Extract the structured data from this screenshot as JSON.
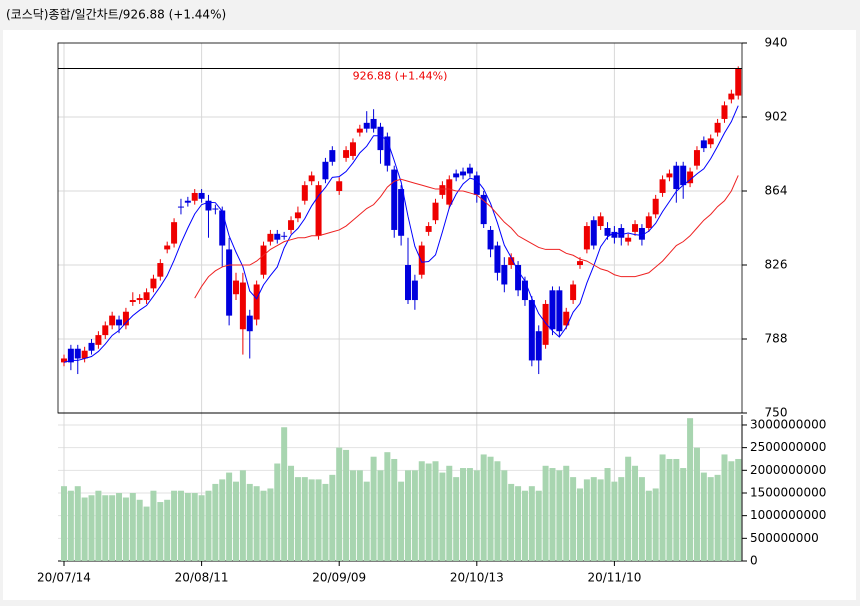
{
  "chart_data": {
    "type": "candlestick",
    "title": "(코스닥)종합/일간차트/926.88  (+1.44%)",
    "annotation": "926.88 (+1.44%)",
    "categories": [
      "20/07/14",
      null,
      null,
      null,
      null,
      null,
      null,
      null,
      null,
      null,
      null,
      null,
      null,
      null,
      null,
      null,
      null,
      null,
      null,
      null,
      "20/08/11",
      null,
      null,
      null,
      null,
      null,
      null,
      null,
      null,
      null,
      null,
      null,
      null,
      null,
      null,
      null,
      null,
      null,
      null,
      null,
      "20/09/09",
      null,
      null,
      null,
      null,
      null,
      null,
      null,
      null,
      null,
      null,
      null,
      null,
      null,
      null,
      null,
      null,
      null,
      null,
      null,
      "20/10/13",
      null,
      null,
      null,
      null,
      null,
      null,
      null,
      null,
      null,
      null,
      null,
      null,
      null,
      null,
      null,
      null,
      null,
      null,
      null,
      "20/11/10",
      null,
      null,
      null,
      null,
      null,
      null,
      null,
      null,
      null,
      null,
      null,
      null,
      null,
      null,
      null,
      null,
      null,
      null
    ],
    "open": [
      776,
      783,
      783,
      778,
      786,
      785,
      790,
      795,
      798,
      795,
      807,
      808,
      808,
      814,
      820,
      834,
      837,
      856,
      859,
      859,
      863,
      859,
      855,
      854,
      834,
      811,
      793,
      800,
      798,
      821,
      838,
      842,
      841,
      844,
      850,
      859,
      869,
      841,
      879,
      885,
      864,
      881,
      882,
      894,
      899,
      901,
      897,
      892,
      875,
      865,
      826,
      818,
      821,
      843,
      849,
      862,
      857,
      873,
      874,
      876,
      872,
      862,
      844,
      836,
      826,
      826,
      826,
      818,
      808,
      792,
      785,
      813,
      813,
      795,
      808,
      826,
      834,
      849,
      846,
      845,
      843,
      845,
      838,
      843,
      845,
      845,
      852,
      863,
      871,
      877,
      877,
      868,
      877,
      890,
      888,
      894,
      901,
      911,
      913
    ],
    "high": [
      780,
      785,
      785,
      784,
      788,
      792,
      797,
      802,
      800,
      804,
      812,
      811,
      814,
      821,
      829,
      838,
      850,
      860,
      861,
      865,
      865,
      862,
      857,
      856,
      840,
      822,
      822,
      803,
      818,
      838,
      844,
      844,
      843,
      851,
      856,
      869,
      874,
      869,
      881,
      887,
      871,
      887,
      891,
      898,
      905,
      906,
      899,
      894,
      877,
      867,
      840,
      821,
      838,
      848,
      860,
      869,
      872,
      875,
      876,
      878,
      874,
      864,
      846,
      838,
      830,
      832,
      828,
      820,
      810,
      795,
      808,
      815,
      815,
      804,
      818,
      830,
      848,
      851,
      853,
      848,
      846,
      847,
      842,
      849,
      847,
      853,
      862,
      872,
      875,
      879,
      879,
      876,
      887,
      892,
      893,
      901,
      910,
      916,
      928
    ],
    "low": [
      774,
      772,
      770,
      776,
      780,
      783,
      788,
      793,
      791,
      793,
      805,
      806,
      806,
      812,
      818,
      832,
      835,
      852,
      856,
      857,
      858,
      840,
      852,
      825,
      795,
      808,
      780,
      778,
      795,
      819,
      836,
      837,
      839,
      842,
      848,
      857,
      867,
      839,
      868,
      877,
      862,
      879,
      880,
      892,
      894,
      894,
      878,
      874,
      840,
      836,
      806,
      803,
      819,
      841,
      847,
      860,
      855,
      869,
      870,
      871,
      858,
      845,
      830,
      818,
      812,
      824,
      810,
      805,
      774,
      770,
      783,
      790,
      789,
      793,
      806,
      824,
      832,
      834,
      844,
      839,
      837,
      836,
      836,
      841,
      836,
      843,
      850,
      861,
      869,
      858,
      860,
      866,
      875,
      884,
      886,
      892,
      899,
      909,
      911
    ],
    "close": [
      778,
      776,
      778,
      782,
      782,
      790,
      795,
      800,
      795,
      802,
      808,
      809,
      812,
      819,
      827,
      836,
      848,
      856,
      858,
      863,
      860,
      854,
      855,
      836,
      800,
      818,
      817,
      792,
      816,
      836,
      842,
      839,
      841,
      849,
      853,
      867,
      872,
      867,
      870,
      879,
      869,
      885,
      889,
      896,
      896,
      896,
      885,
      877,
      844,
      841,
      808,
      808,
      836,
      846,
      858,
      867,
      870,
      871,
      872,
      873,
      862,
      847,
      834,
      822,
      816,
      830,
      813,
      808,
      777,
      777,
      806,
      793,
      792,
      802,
      816,
      828,
      846,
      836,
      851,
      841,
      840,
      840,
      840,
      847,
      839,
      851,
      860,
      870,
      873,
      865,
      867,
      874,
      885,
      886,
      891,
      899,
      908,
      914,
      926.88
    ],
    "up_color": "#ee0000",
    "down_color": "#0000dd",
    "ma": [
      {
        "color": "#0000ff",
        "values": [
          776,
          777,
          777,
          778,
          779,
          781.6,
          785.4,
          789.8,
          792.4,
          796.4,
          800,
          802.8,
          805.2,
          810,
          815,
          820.6,
          828.4,
          837.2,
          845,
          852.2,
          857,
          858.2,
          858,
          853.6,
          841,
          832.6,
          825.2,
          812.6,
          808.6,
          815.8,
          820.6,
          825,
          834.8,
          841.4,
          844.8,
          849.8,
          856.4,
          861.6,
          865.8,
          871,
          871.4,
          874,
          878.4,
          883.6,
          887,
          892.4,
          892.4,
          890,
          879.6,
          868.6,
          851,
          835.6,
          827.4,
          827.8,
          831.2,
          843,
          855.4,
          862.4,
          867.6,
          870.6,
          869.6,
          865,
          857.6,
          847.6,
          836.2,
          829.8,
          823,
          817.8,
          808.8,
          801,
          796.2,
          792.2,
          789,
          794,
          801.8,
          806.2,
          816.8,
          825.6,
          835.4,
          840.4,
          842.8,
          841.6,
          842.4,
          841.6,
          841.2,
          843.4,
          847.4,
          853.4,
          858.6,
          863.8,
          867,
          869.8,
          872.8,
          875.4,
          880.6,
          887,
          893.8,
          899.6,
          907.8
        ]
      },
      {
        "color": "#ee2222",
        "values": [
          null,
          null,
          null,
          null,
          null,
          null,
          null,
          null,
          null,
          null,
          null,
          null,
          null,
          null,
          null,
          null,
          null,
          null,
          null,
          809,
          815,
          820,
          823,
          825,
          826,
          826,
          826,
          826,
          828,
          831,
          834,
          836,
          838,
          839,
          840,
          840,
          841,
          841,
          842,
          843,
          844,
          846,
          849,
          852,
          855,
          857,
          861,
          866,
          869,
          870,
          869,
          868,
          867,
          866,
          865,
          865,
          865,
          864,
          864,
          863,
          862,
          859,
          856,
          852,
          848,
          845,
          841,
          839,
          837,
          835,
          834,
          834,
          834,
          832,
          831,
          829,
          828,
          826,
          824,
          823,
          821,
          820,
          820,
          820,
          821,
          822,
          825,
          828,
          832,
          836,
          838,
          841,
          845,
          849,
          852,
          856,
          859,
          864,
          872
        ]
      }
    ],
    "ylim": [
      750,
      940
    ],
    "yticks": [
      940,
      902,
      864,
      826,
      788,
      750
    ],
    "grid": true,
    "volume": {
      "color": "#a8d5b0",
      "ylim": [
        0,
        3220000000
      ],
      "yticks": [
        3000000000,
        2500000000,
        2000000000,
        1500000000,
        1000000000,
        500000000,
        0
      ],
      "values": [
        1650000000,
        1550000000,
        1650000000,
        1400000000,
        1450000000,
        1550000000,
        1450000000,
        1450000000,
        1500000000,
        1400000000,
        1500000000,
        1350000000,
        1200000000,
        1550000000,
        1300000000,
        1350000000,
        1550000000,
        1550000000,
        1500000000,
        1500000000,
        1450000000,
        1550000000,
        1700000000,
        1800000000,
        1950000000,
        1750000000,
        2000000000,
        1700000000,
        1650000000,
        1550000000,
        1600000000,
        2150000000,
        2950000000,
        2100000000,
        1850000000,
        1850000000,
        1800000000,
        1800000000,
        1700000000,
        1900000000,
        2500000000,
        2450000000,
        2000000000,
        2000000000,
        1750000000,
        2300000000,
        2000000000,
        2400000000,
        2250000000,
        1750000000,
        2000000000,
        2000000000,
        2200000000,
        2150000000,
        2200000000,
        1950000000,
        2100000000,
        1850000000,
        2050000000,
        2050000000,
        2000000000,
        2350000000,
        2300000000,
        2200000000,
        2000000000,
        1700000000,
        1650000000,
        1550000000,
        1650000000,
        1550000000,
        2100000000,
        2050000000,
        2000000000,
        2100000000,
        1850000000,
        1600000000,
        1800000000,
        1850000000,
        1800000000,
        2050000000,
        1750000000,
        1850000000,
        2300000000,
        2100000000,
        1850000000,
        1550000000,
        1600000000,
        2350000000,
        2250000000,
        2250000000,
        2050000000,
        3150000000,
        2500000000,
        1950000000,
        1850000000,
        1900000000,
        2350000000,
        2200000000,
        2250000000
      ]
    }
  }
}
